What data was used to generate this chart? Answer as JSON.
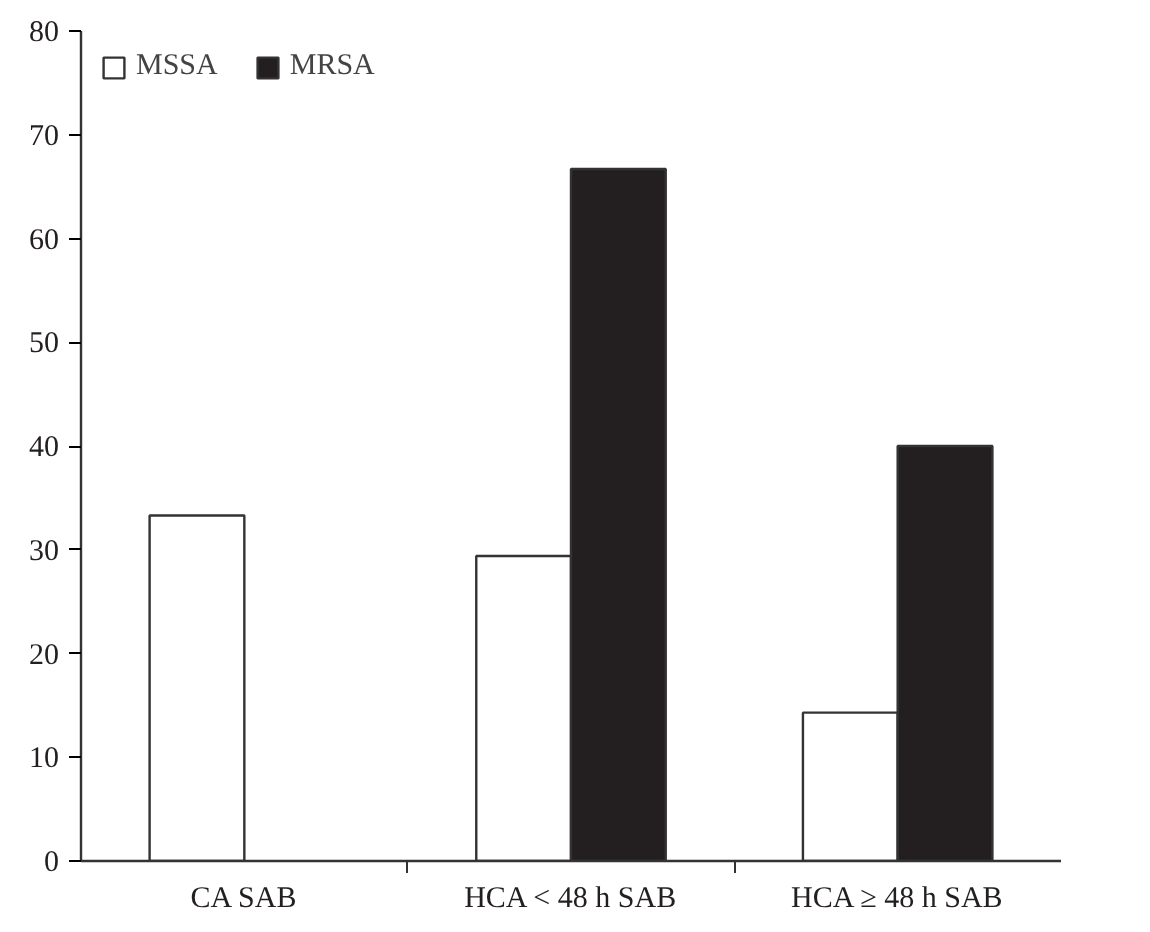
{
  "chart_data": {
    "type": "bar",
    "categories": [
      "CA SAB",
      "HCA < 48 h SAB",
      "HCA ≥ 48 h SAB"
    ],
    "series": [
      {
        "name": "MSSA",
        "color": "#ffffff",
        "values": [
          33.3,
          29.4,
          14.3
        ]
      },
      {
        "name": "MRSA",
        "color": "#231f20",
        "values": [
          null,
          66.7,
          40
        ]
      }
    ],
    "ylim": [
      0,
      80
    ],
    "yticks": [
      0,
      10,
      20,
      30,
      40,
      50,
      60,
      70,
      80
    ],
    "grid": false,
    "legend": "top left"
  }
}
